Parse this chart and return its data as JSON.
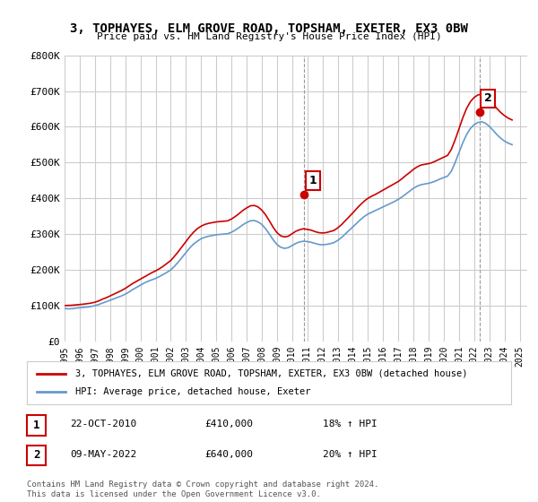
{
  "title": "3, TOPHAYES, ELM GROVE ROAD, TOPSHAM, EXETER, EX3 0BW",
  "subtitle": "Price paid vs. HM Land Registry's House Price Index (HPI)",
  "legend_label_red": "3, TOPHAYES, ELM GROVE ROAD, TOPSHAM, EXETER, EX3 0BW (detached house)",
  "legend_label_blue": "HPI: Average price, detached house, Exeter",
  "footer": "Contains HM Land Registry data © Crown copyright and database right 2024.\nThis data is licensed under the Open Government Licence v3.0.",
  "sale1_date": "22-OCT-2010",
  "sale1_price": "£410,000",
  "sale1_hpi": "18% ↑ HPI",
  "sale2_date": "09-MAY-2022",
  "sale2_price": "£640,000",
  "sale2_hpi": "20% ↑ HPI",
  "red_color": "#cc0000",
  "blue_color": "#6699cc",
  "background_color": "#ffffff",
  "grid_color": "#cccccc",
  "ylim": [
    0,
    800000
  ],
  "yticks": [
    0,
    100000,
    200000,
    300000,
    400000,
    500000,
    600000,
    700000,
    800000
  ],
  "ytick_labels": [
    "£0",
    "£100K",
    "£200K",
    "£300K",
    "£400K",
    "£500K",
    "£600K",
    "£700K",
    "£800K"
  ],
  "xlim_start": 1995.0,
  "xlim_end": 2025.5,
  "xticks": [
    1995,
    1996,
    1997,
    1998,
    1999,
    2000,
    2001,
    2002,
    2003,
    2004,
    2005,
    2006,
    2007,
    2008,
    2009,
    2010,
    2011,
    2012,
    2013,
    2014,
    2015,
    2016,
    2017,
    2018,
    2019,
    2020,
    2021,
    2022,
    2023,
    2024,
    2025
  ],
  "hpi_x": [
    1995.0,
    1995.25,
    1995.5,
    1995.75,
    1996.0,
    1996.25,
    1996.5,
    1996.75,
    1997.0,
    1997.25,
    1997.5,
    1997.75,
    1998.0,
    1998.25,
    1998.5,
    1998.75,
    1999.0,
    1999.25,
    1999.5,
    1999.75,
    2000.0,
    2000.25,
    2000.5,
    2000.75,
    2001.0,
    2001.25,
    2001.5,
    2001.75,
    2002.0,
    2002.25,
    2002.5,
    2002.75,
    2003.0,
    2003.25,
    2003.5,
    2003.75,
    2004.0,
    2004.25,
    2004.5,
    2004.75,
    2005.0,
    2005.25,
    2005.5,
    2005.75,
    2006.0,
    2006.25,
    2006.5,
    2006.75,
    2007.0,
    2007.25,
    2007.5,
    2007.75,
    2008.0,
    2008.25,
    2008.5,
    2008.75,
    2009.0,
    2009.25,
    2009.5,
    2009.75,
    2010.0,
    2010.25,
    2010.5,
    2010.75,
    2011.0,
    2011.25,
    2011.5,
    2011.75,
    2012.0,
    2012.25,
    2012.5,
    2012.75,
    2013.0,
    2013.25,
    2013.5,
    2013.75,
    2014.0,
    2014.25,
    2014.5,
    2014.75,
    2015.0,
    2015.25,
    2015.5,
    2015.75,
    2016.0,
    2016.25,
    2016.5,
    2016.75,
    2017.0,
    2017.25,
    2017.5,
    2017.75,
    2018.0,
    2018.25,
    2018.5,
    2018.75,
    2019.0,
    2019.25,
    2019.5,
    2019.75,
    2020.0,
    2020.25,
    2020.5,
    2020.75,
    2021.0,
    2021.25,
    2021.5,
    2021.75,
    2022.0,
    2022.25,
    2022.5,
    2022.75,
    2023.0,
    2023.25,
    2023.5,
    2023.75,
    2024.0,
    2024.25,
    2024.5
  ],
  "hpi_y": [
    92000,
    91000,
    91500,
    93000,
    94000,
    95000,
    96000,
    97500,
    100000,
    103000,
    107000,
    111000,
    115000,
    119000,
    123000,
    127000,
    132000,
    138000,
    145000,
    151000,
    157000,
    163000,
    168000,
    172000,
    176000,
    181000,
    187000,
    193000,
    200000,
    210000,
    222000,
    235000,
    248000,
    261000,
    272000,
    280000,
    287000,
    291000,
    294000,
    296000,
    298000,
    299000,
    300000,
    301000,
    305000,
    311000,
    318000,
    326000,
    332000,
    337000,
    338000,
    334000,
    327000,
    315000,
    300000,
    284000,
    271000,
    263000,
    260000,
    262000,
    268000,
    274000,
    278000,
    280000,
    279000,
    277000,
    274000,
    271000,
    270000,
    271000,
    273000,
    276000,
    282000,
    290000,
    300000,
    310000,
    320000,
    330000,
    340000,
    349000,
    356000,
    361000,
    366000,
    371000,
    376000,
    381000,
    386000,
    391000,
    397000,
    404000,
    412000,
    420000,
    428000,
    434000,
    438000,
    440000,
    442000,
    445000,
    449000,
    454000,
    458000,
    462000,
    476000,
    500000,
    528000,
    555000,
    578000,
    595000,
    606000,
    612000,
    614000,
    610000,
    601000,
    590000,
    578000,
    568000,
    560000,
    554000,
    550000
  ],
  "red_x": [
    1995.0,
    1995.25,
    1995.5,
    1995.75,
    1996.0,
    1996.25,
    1996.5,
    1996.75,
    1997.0,
    1997.25,
    1997.5,
    1997.75,
    1998.0,
    1998.25,
    1998.5,
    1998.75,
    1999.0,
    1999.25,
    1999.5,
    1999.75,
    2000.0,
    2000.25,
    2000.5,
    2000.75,
    2001.0,
    2001.25,
    2001.5,
    2001.75,
    2002.0,
    2002.25,
    2002.5,
    2002.75,
    2003.0,
    2003.25,
    2003.5,
    2003.75,
    2004.0,
    2004.25,
    2004.5,
    2004.75,
    2005.0,
    2005.25,
    2005.5,
    2005.75,
    2006.0,
    2006.25,
    2006.5,
    2006.75,
    2007.0,
    2007.25,
    2007.5,
    2007.75,
    2008.0,
    2008.25,
    2008.5,
    2008.75,
    2009.0,
    2009.25,
    2009.5,
    2009.75,
    2010.0,
    2010.25,
    2010.5,
    2010.75,
    2011.0,
    2011.25,
    2011.5,
    2011.75,
    2012.0,
    2012.25,
    2012.5,
    2012.75,
    2013.0,
    2013.25,
    2013.5,
    2013.75,
    2014.0,
    2014.25,
    2014.5,
    2014.75,
    2015.0,
    2015.25,
    2015.5,
    2015.75,
    2016.0,
    2016.25,
    2016.5,
    2016.75,
    2017.0,
    2017.25,
    2017.5,
    2017.75,
    2018.0,
    2018.25,
    2018.5,
    2018.75,
    2019.0,
    2019.25,
    2019.5,
    2019.75,
    2020.0,
    2020.25,
    2020.5,
    2020.75,
    2021.0,
    2021.25,
    2021.5,
    2021.75,
    2022.0,
    2022.25,
    2022.5,
    2022.75,
    2023.0,
    2023.25,
    2023.5,
    2023.75,
    2024.0,
    2024.25,
    2024.5
  ],
  "red_y": [
    100000,
    100500,
    101000,
    102000,
    103000,
    104000,
    105500,
    107000,
    109500,
    113000,
    118000,
    122000,
    127000,
    132000,
    137000,
    142000,
    148000,
    155000,
    162000,
    168000,
    174000,
    180000,
    186000,
    192000,
    197000,
    203000,
    210000,
    218000,
    226000,
    238000,
    251000,
    265000,
    279000,
    293000,
    305000,
    315000,
    322000,
    327000,
    330000,
    332000,
    334000,
    335000,
    336000,
    337000,
    342000,
    349000,
    357000,
    366000,
    373000,
    379000,
    380000,
    376000,
    367000,
    354000,
    337000,
    319000,
    304000,
    295000,
    292000,
    294000,
    301000,
    308000,
    312000,
    315000,
    313000,
    311000,
    307000,
    304000,
    303000,
    304000,
    307000,
    310000,
    317000,
    326000,
    337000,
    348000,
    359000,
    371000,
    382000,
    392000,
    400000,
    406000,
    411000,
    417000,
    423000,
    429000,
    435000,
    441000,
    447000,
    455000,
    464000,
    472000,
    481000,
    488000,
    493000,
    495000,
    497000,
    500000,
    505000,
    510000,
    515000,
    520000,
    537000,
    564000,
    594000,
    625000,
    651000,
    670000,
    682000,
    689000,
    691000,
    687000,
    676000,
    664000,
    651000,
    640000,
    631000,
    624000,
    619000
  ],
  "sale1_x": 2010.8,
  "sale1_y": 410000,
  "sale2_x": 2022.35,
  "sale2_y": 640000
}
